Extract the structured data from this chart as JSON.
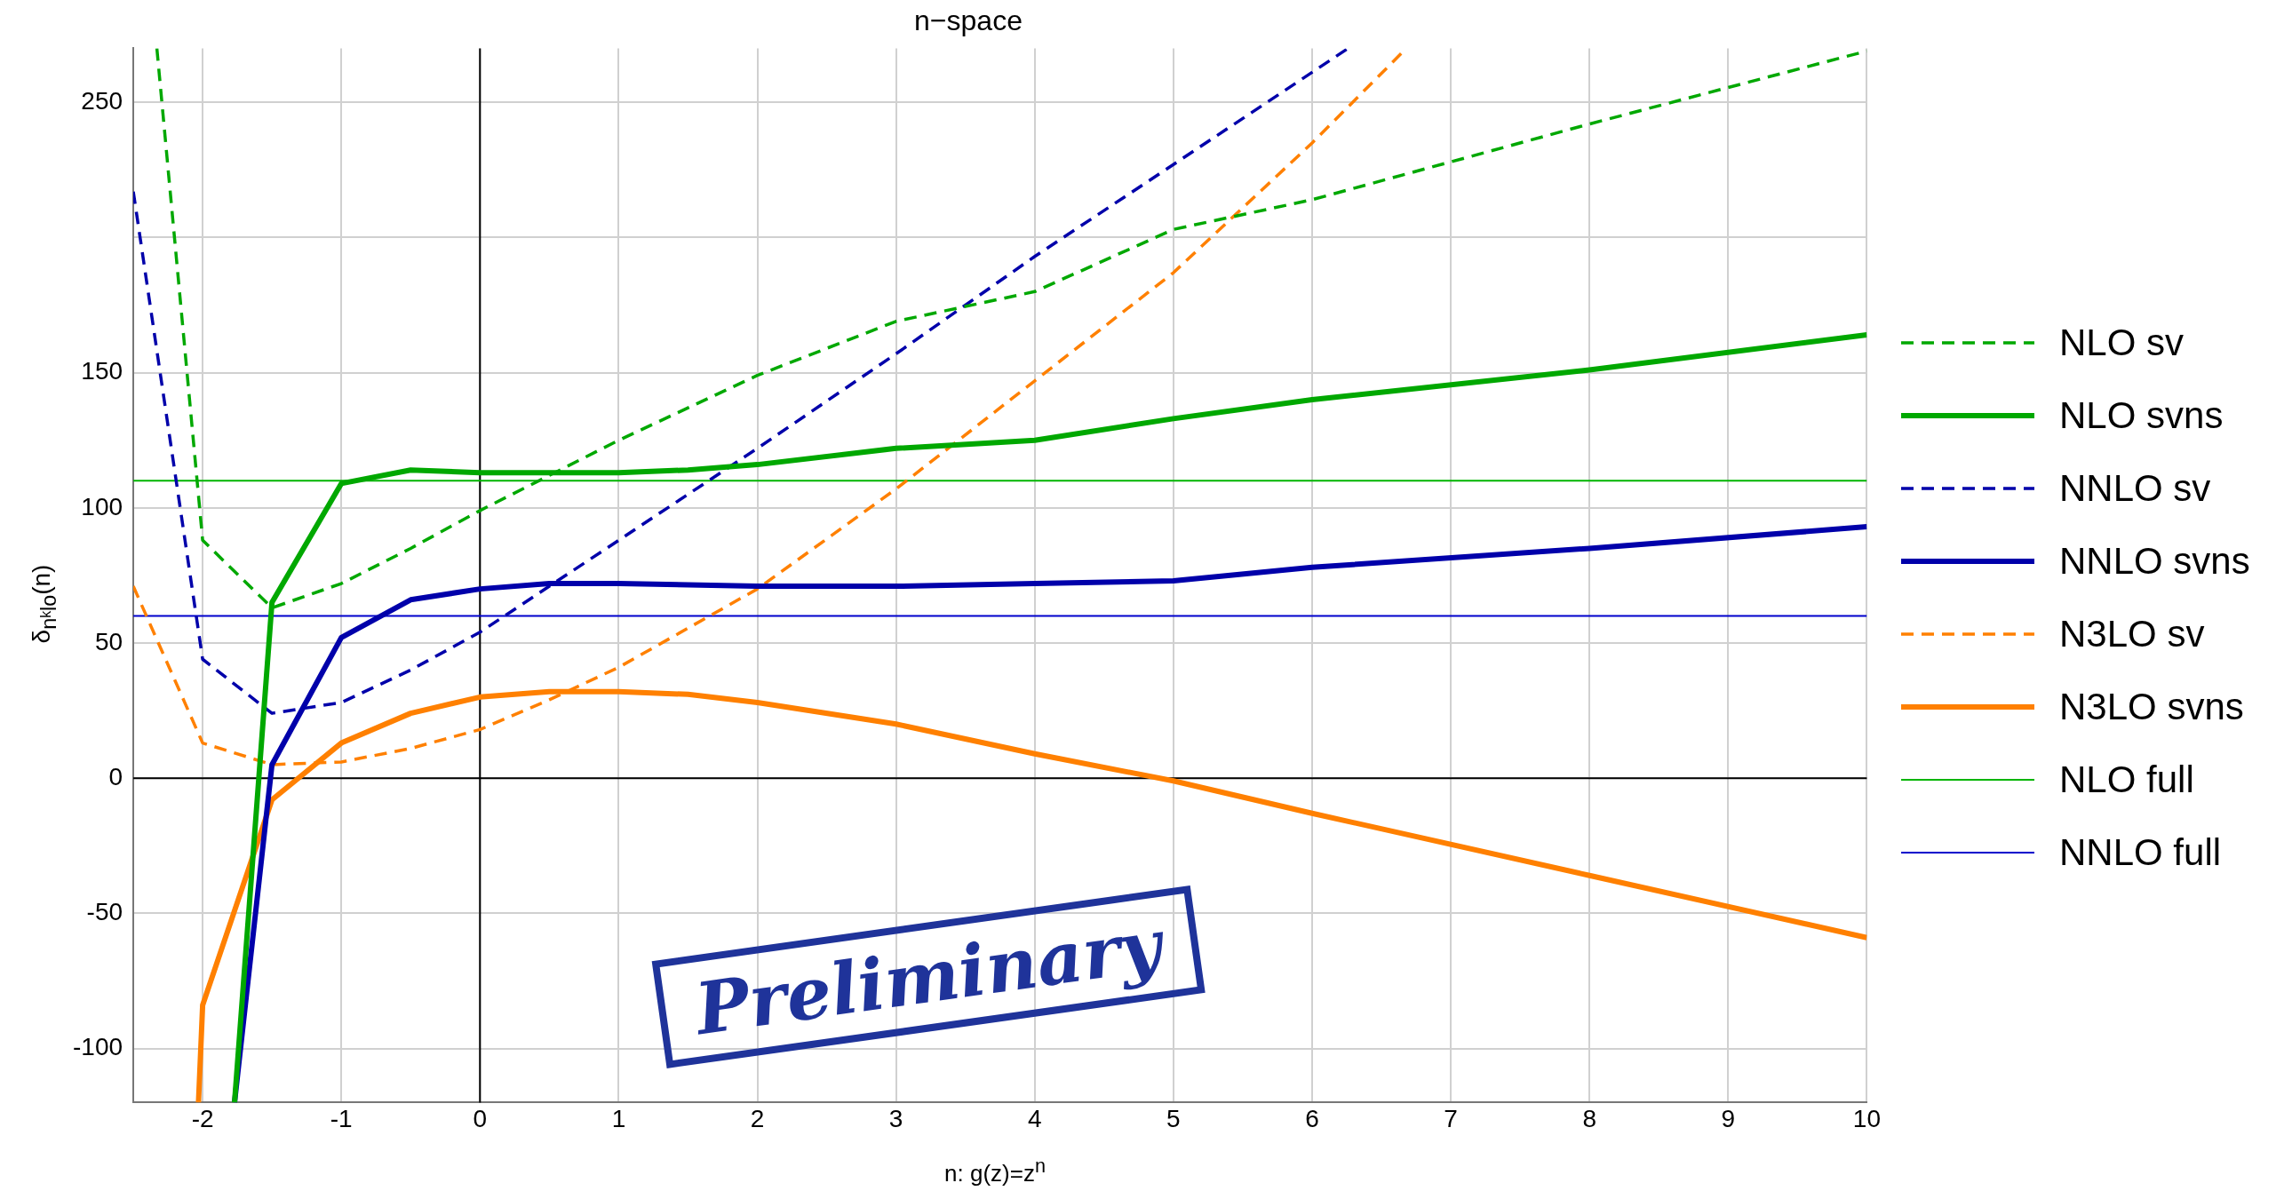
{
  "chart_data": {
    "type": "line",
    "title": "n−space",
    "xlabel": "n: g(z)=z$^{n}$",
    "ylabel": "δ$_{nᵏlo}$(n)",
    "xlim": [
      -2.5,
      10
    ],
    "xticks": [
      -2,
      -1,
      0,
      1,
      2,
      3,
      4,
      5,
      6,
      7,
      8,
      9,
      10
    ],
    "ylim": [
      -120,
      270
    ],
    "yticks": [
      -100,
      -50,
      0,
      50,
      100,
      150,
      {
        "value": 200,
        "label": null
      },
      250
    ],
    "grid": true,
    "legend": "right",
    "marker": "none",
    "annotations": [
      "Preliminary"
    ],
    "series": [
      {
        "name": "NLO sv",
        "color": "#00a800",
        "line_style": "dashed",
        "x": [
          -2.33,
          -2,
          -1.5,
          -1,
          -0.5,
          0,
          1,
          2,
          3,
          4,
          5,
          6,
          8,
          10
        ],
        "values": [
          270,
          88,
          63,
          72,
          85,
          99,
          125,
          149,
          169,
          180,
          203,
          214,
          242,
          269
        ]
      },
      {
        "name": "NLO svns",
        "color": "#00a800",
        "line_style": "solid",
        "x": [
          -1.77,
          -1.5,
          -1,
          -0.5,
          0,
          0.5,
          1,
          1.5,
          2,
          3,
          4,
          5,
          6,
          8,
          10
        ],
        "values": [
          -120,
          65,
          109,
          114,
          113,
          113,
          113,
          114,
          116,
          122,
          125,
          133,
          140,
          151,
          164
        ]
      },
      {
        "name": "NNLO sv",
        "color": "#0000aa",
        "line_style": "dashed",
        "x": [
          -2.5,
          -2,
          -1.5,
          -1,
          -0.5,
          0,
          0.5,
          1,
          2,
          3,
          4,
          5,
          6.26
        ],
        "values": [
          217,
          44,
          24,
          28,
          40,
          54,
          71,
          88,
          122,
          157,
          193,
          227,
          270
        ]
      },
      {
        "name": "NNLO svns",
        "color": "#0000aa",
        "line_style": "solid",
        "x": [
          -1.77,
          -1.5,
          -1,
          -0.5,
          0,
          0.5,
          1,
          2,
          3,
          4,
          5,
          6,
          8,
          10
        ],
        "values": [
          -120,
          5,
          52,
          66,
          70,
          72,
          72,
          71,
          71,
          72,
          73,
          78,
          85,
          93
        ]
      },
      {
        "name": "N3LO sv",
        "color": "#ff8000",
        "line_style": "dashed",
        "x": [
          -2.5,
          -2,
          -1.5,
          -1,
          -0.5,
          0,
          0.5,
          1,
          2,
          3,
          4,
          5,
          6,
          6.68
        ],
        "values": [
          71,
          13,
          5,
          6,
          11,
          18,
          29,
          41,
          70,
          107,
          147,
          187,
          235,
          270
        ]
      },
      {
        "name": "N3LO svns",
        "color": "#ff8000",
        "line_style": "solid",
        "x": [
          -2.03,
          -2,
          -1.5,
          -1,
          -0.5,
          0,
          0.5,
          1,
          1.5,
          2,
          3,
          4,
          5,
          6,
          8,
          10
        ],
        "values": [
          -120,
          -84,
          -8,
          13,
          24,
          30,
          32,
          32,
          31,
          28,
          20,
          9,
          -1,
          -13,
          -36,
          -59
        ]
      },
      {
        "name": "NLO full",
        "color": "#00b400",
        "line_style": "solid",
        "x": [
          -2.5,
          10
        ],
        "values": [
          110,
          110
        ]
      },
      {
        "name": "NNLO full",
        "color": "#0000cc",
        "line_style": "solid",
        "x": [
          -2.5,
          10
        ],
        "values": [
          60,
          60
        ]
      }
    ]
  }
}
